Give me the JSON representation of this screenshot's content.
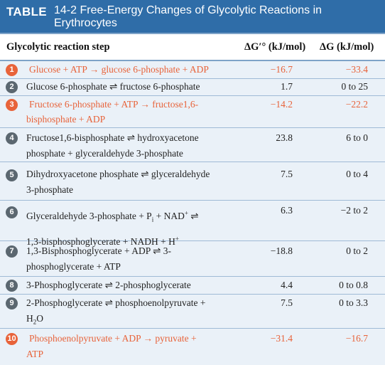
{
  "table": {
    "tag": "TABLE",
    "title_line1": "14-2 Free-Energy Changes of Glycolytic Reactions in",
    "title_line2": "Erythrocytes"
  },
  "columns": {
    "step": "Glycolytic reaction step",
    "dg0": "ΔG′° (kJ/mol)",
    "dg": "ΔG (kJ/mol)"
  },
  "rows": [
    {
      "num": "1",
      "line1": "Glucose + ATP → glucose 6-phosphate + ADP",
      "line2": "",
      "dg0": "−16.7",
      "dg": "−33.4",
      "highlight": true
    },
    {
      "num": "2",
      "line1": "Glucose 6-phosphate ⇌ fructose 6-phosphate",
      "line2": "",
      "dg0": "1.7",
      "dg": "0 to 25",
      "highlight": false
    },
    {
      "num": "3",
      "line1": "Fructose 6-phosphate + ATP → fructose1,6-",
      "line2": "bisphosphate + ADP",
      "dg0": "−14.2",
      "dg": "−22.2",
      "highlight": true
    },
    {
      "num": "4",
      "line1": "Fructose1,6-bisphosphate ⇌ hydroxyacetone",
      "line2": "phosphate + glyceraldehyde 3-phosphate",
      "dg0": "23.8",
      "dg": "6 to 0",
      "highlight": false
    },
    {
      "num": "5",
      "line1": "Dihydroxyacetone phosphate ⇌ glyceraldehyde",
      "line2": "3-phosphate",
      "dg0": "7.5",
      "dg": "0 to 4",
      "highlight": false
    },
    {
      "num": "6",
      "line1": "Glyceraldehyde 3-phosphate + Pi + NAD+ ⇌",
      "line2": "1,3-bisphosphoglycerate + NADH + H+",
      "dg0": "6.3",
      "dg": "−2 to 2",
      "highlight": false
    },
    {
      "num": "7",
      "line1": "1,3-Bisphosphoglycerate + ADP ⇌ 3-",
      "line2": "phosphoglycerate + ATP",
      "dg0": "−18.8",
      "dg": "0 to 2",
      "highlight": false
    },
    {
      "num": "8",
      "line1": "3-Phosphoglycerate ⇌ 2-phosphoglycerate",
      "line2": "",
      "dg0": "4.4",
      "dg": "0 to 0.8",
      "highlight": false
    },
    {
      "num": "9",
      "line1": "2-Phosphoglycerate ⇌ phosphoenolpyruvate +",
      "line2": "H2O",
      "dg0": "7.5",
      "dg": "0 to 3.3",
      "highlight": false
    },
    {
      "num": "10",
      "line1": "Phosphoenolpyruvate + ADP → pyruvate +",
      "line2": "ATP",
      "dg0": "−31.4",
      "dg": "−16.7",
      "highlight": true
    }
  ],
  "colors": {
    "title_bg": "#2f6da8",
    "highlight": "#e8633a",
    "row_bg": "#eaf1f8",
    "badge_dark": "#5b6770"
  }
}
